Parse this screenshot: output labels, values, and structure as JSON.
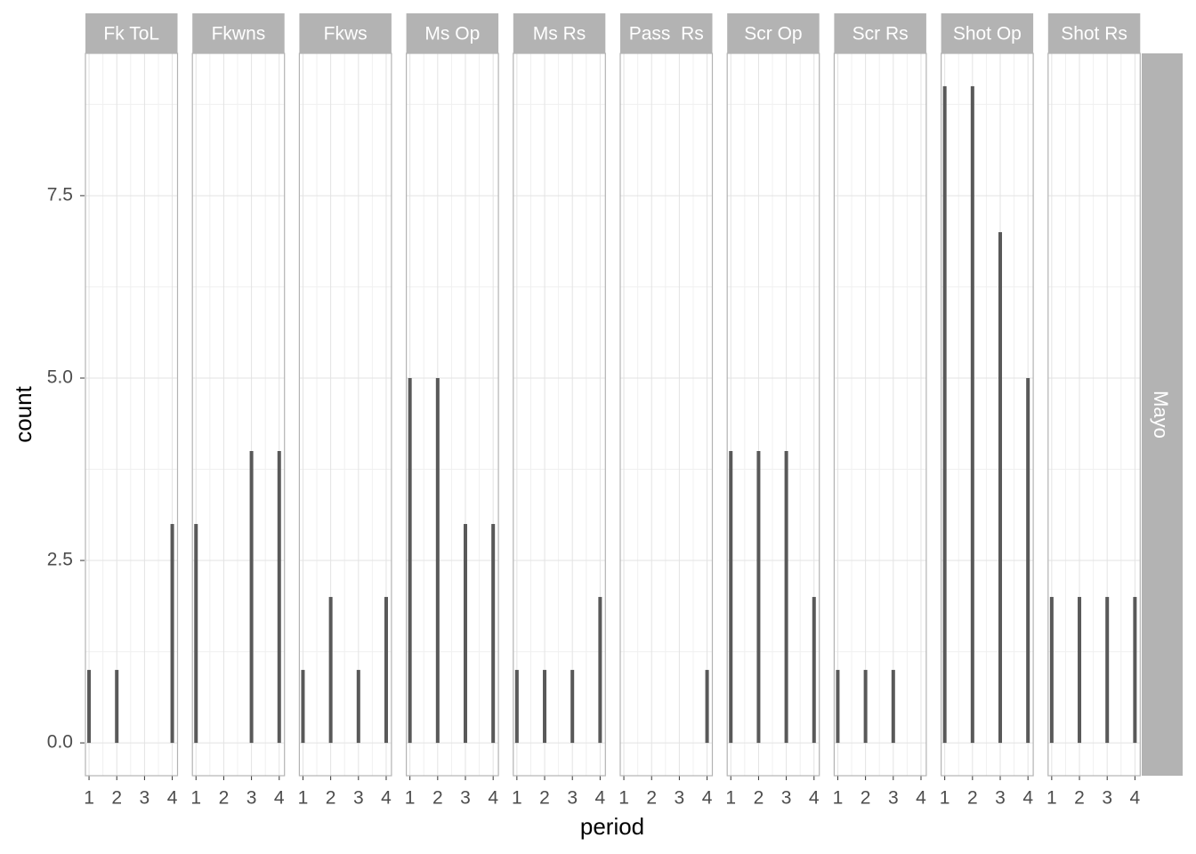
{
  "chart_data": {
    "type": "bar",
    "xlabel": "period",
    "ylabel": "count",
    "row_label": "Mayo",
    "color": "#595959",
    "grid": true,
    "xlim": [
      0.87,
      4.19
    ],
    "xticks": [
      1,
      2,
      3,
      4
    ],
    "xminorticks": [
      1.5,
      2.5,
      3.5
    ],
    "ylim": [
      -0.45,
      9.45
    ],
    "yticks": [
      {
        "value": 0,
        "label": "0.0"
      },
      2.5,
      {
        "value": 5,
        "label": "5.0"
      },
      7.5
    ],
    "yminorticks": [
      1.25,
      3.75,
      6.25,
      8.75
    ],
    "facets": [
      {
        "title": "Fk ToL",
        "x": [
          1,
          2,
          4
        ],
        "values": [
          1,
          1,
          3
        ]
      },
      {
        "title": "Fkwns",
        "x": [
          1,
          3,
          4
        ],
        "values": [
          3,
          4,
          4
        ]
      },
      {
        "title": "Fkws",
        "x": [
          1,
          2,
          3,
          4
        ],
        "values": [
          1,
          2,
          1,
          2
        ]
      },
      {
        "title": "Ms Op",
        "x": [
          1,
          2,
          3,
          4
        ],
        "values": [
          5,
          5,
          3,
          3
        ]
      },
      {
        "title": "Ms Rs",
        "x": [
          1,
          2,
          3,
          4
        ],
        "values": [
          1,
          1,
          1,
          2
        ]
      },
      {
        "title": "Pass  Rs",
        "x": [
          4
        ],
        "values": [
          1
        ]
      },
      {
        "title": "Scr Op",
        "x": [
          1,
          2,
          3,
          4
        ],
        "values": [
          4,
          4,
          4,
          2
        ]
      },
      {
        "title": "Scr Rs",
        "x": [
          1,
          2,
          3
        ],
        "values": [
          1,
          1,
          1
        ]
      },
      {
        "title": "Shot Op",
        "x": [
          1,
          2,
          3,
          4
        ],
        "values": [
          9,
          9,
          7,
          5
        ]
      },
      {
        "title": "Shot Rs",
        "x": [
          1,
          2,
          3,
          4
        ],
        "values": [
          2,
          2,
          2,
          2
        ]
      }
    ]
  }
}
